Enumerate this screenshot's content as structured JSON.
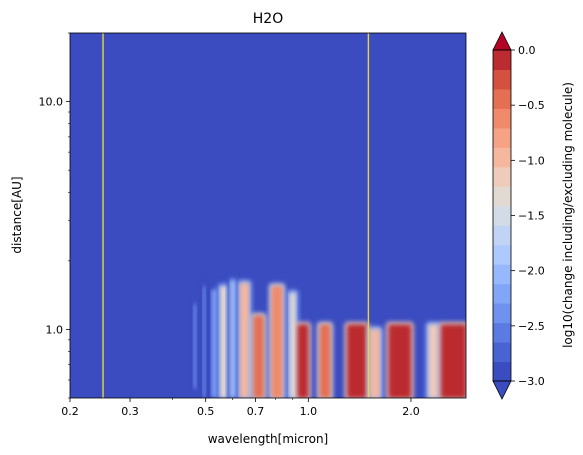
{
  "chart_data": {
    "type": "heatmap",
    "title": "H2O",
    "xlabel": "wavelength[micron]",
    "ylabel": "distance[AU]",
    "x_scale": "log",
    "y_scale": "log",
    "xlim": [
      0.2,
      2.9
    ],
    "ylim": [
      0.5,
      20
    ],
    "x_ticks": [
      {
        "value": 0.2,
        "label": "0.2"
      },
      {
        "value": 0.3,
        "label": "0.3"
      },
      {
        "value": 0.5,
        "label": "0.5"
      },
      {
        "value": 0.7,
        "label": "0.7"
      },
      {
        "value": 1.0,
        "label": "1.0"
      },
      {
        "value": 2.0,
        "label": "2.0"
      }
    ],
    "y_ticks": [
      {
        "value": 1.0,
        "label": "1.0"
      },
      {
        "value": 10.0,
        "label": "10.0"
      }
    ],
    "colorbar": {
      "label": "log10(change including/excluding molecule)",
      "min": -3.0,
      "max": 0.0,
      "levels": 16,
      "extend": "both",
      "ticks": [
        {
          "value": 0.0,
          "label": "0.0"
        },
        {
          "value": -0.5,
          "label": "−0.5"
        },
        {
          "value": -1.0,
          "label": "−1.0"
        },
        {
          "value": -1.5,
          "label": "−1.5"
        },
        {
          "value": -2.0,
          "label": "−2.0"
        },
        {
          "value": -2.5,
          "label": "−2.5"
        },
        {
          "value": -3.0,
          "label": "−3.0"
        }
      ],
      "colors": [
        "#3b4cc0",
        "#4a63d3",
        "#5b7be2",
        "#6e92ee",
        "#82a6f7",
        "#98b8fd",
        "#adc9fd",
        "#c1d4f5",
        "#d3dbe7",
        "#e2d9d3",
        "#eecbbb",
        "#f5b89f",
        "#f6a284",
        "#f18a6a",
        "#e56f53",
        "#d4513f",
        "#bb2b2f"
      ]
    },
    "vertical_lines": [
      {
        "x": 0.25,
        "color": "#e8d63a"
      },
      {
        "x": 1.5,
        "color": "#e8d63a"
      }
    ],
    "features": [
      {
        "x0": 0.46,
        "x1": 0.47,
        "y0": 0.55,
        "y1": 1.3,
        "value": -2.4
      },
      {
        "x0": 0.49,
        "x1": 0.5,
        "y0": 0.5,
        "y1": 1.55,
        "value": -2.3
      },
      {
        "x0": 0.52,
        "x1": 0.54,
        "y0": 0.5,
        "y1": 1.5,
        "value": -2.1
      },
      {
        "x0": 0.55,
        "x1": 0.58,
        "y0": 0.5,
        "y1": 1.55,
        "value": -1.3
      },
      {
        "x0": 0.59,
        "x1": 0.61,
        "y0": 0.5,
        "y1": 1.65,
        "value": -1.8
      },
      {
        "x0": 0.63,
        "x1": 0.67,
        "y0": 0.5,
        "y1": 1.6,
        "value": -0.9
      },
      {
        "x0": 0.69,
        "x1": 0.74,
        "y0": 0.5,
        "y1": 1.15,
        "value": -0.3
      },
      {
        "x0": 0.78,
        "x1": 0.84,
        "y0": 0.5,
        "y1": 1.55,
        "value": -0.5
      },
      {
        "x0": 0.88,
        "x1": 0.92,
        "y0": 0.5,
        "y1": 1.45,
        "value": -1.2
      },
      {
        "x0": 0.93,
        "x1": 1.0,
        "y0": 0.5,
        "y1": 1.05,
        "value": 0.0
      },
      {
        "x0": 1.08,
        "x1": 1.16,
        "y0": 0.5,
        "y1": 1.05,
        "value": -0.2
      },
      {
        "x0": 1.3,
        "x1": 1.48,
        "y0": 0.5,
        "y1": 1.05,
        "value": 0.0
      },
      {
        "x0": 1.52,
        "x1": 1.62,
        "y0": 0.5,
        "y1": 1.0,
        "value": -0.8
      },
      {
        "x0": 1.72,
        "x1": 2.0,
        "y0": 0.5,
        "y1": 1.05,
        "value": 0.0
      },
      {
        "x0": 2.25,
        "x1": 2.4,
        "y0": 0.5,
        "y1": 1.05,
        "value": -1.0
      },
      {
        "x0": 2.45,
        "x1": 2.9,
        "y0": 0.5,
        "y1": 1.05,
        "value": 0.0
      }
    ]
  }
}
